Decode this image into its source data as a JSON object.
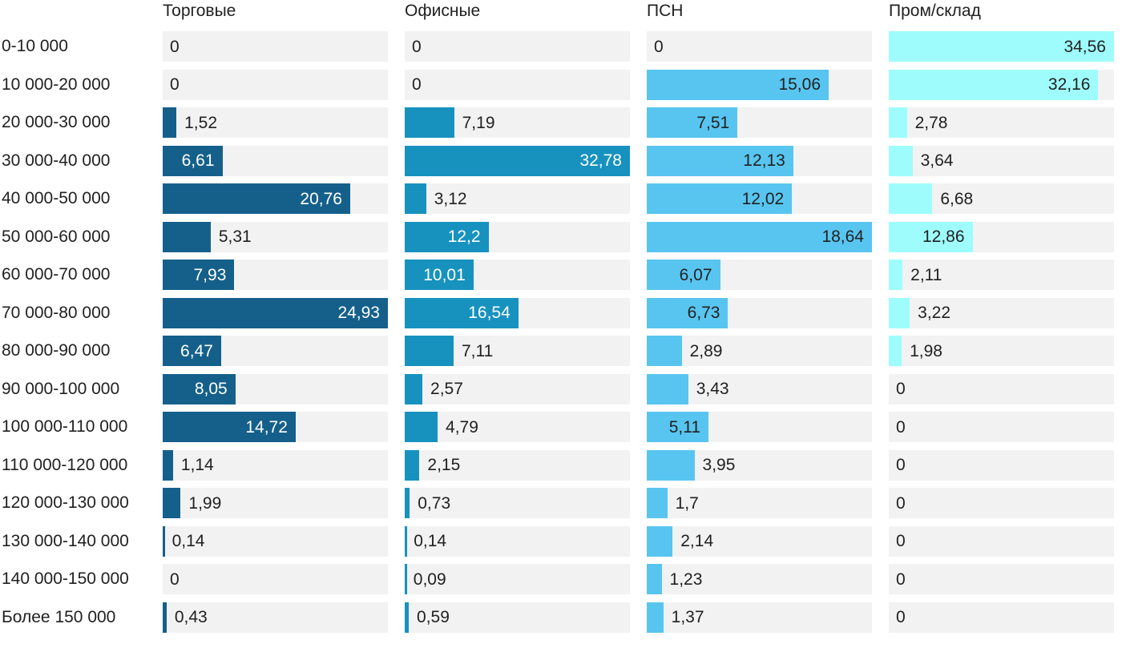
{
  "chart_data": {
    "type": "bar",
    "orientation": "horizontal",
    "scaling": "per-column-max",
    "grid": false,
    "track_color": "#f2f2f2",
    "text_color": "#212121",
    "background_color": "#ffffff",
    "categories": [
      "0-10 000",
      "10 000-20 000",
      "20 000-30 000",
      "30 000-40 000",
      "40 000-50 000",
      "50 000-60 000",
      "60 000-70 000",
      "70 000-80 000",
      "80 000-90 000",
      "90 000-100 000",
      "100 000-110 000",
      "110 000-120 000",
      "120 000-130 000",
      "130 000-140 000",
      "140 000-150 000",
      "Более 150 000"
    ],
    "series": [
      {
        "name": "Торговые",
        "color": "#15608b",
        "value_color_inside": "#ffffff",
        "values": [
          0,
          0,
          1.52,
          6.61,
          20.76,
          5.31,
          7.93,
          24.93,
          6.47,
          8.05,
          14.72,
          1.14,
          1.99,
          0.14,
          0,
          0.43
        ],
        "labels": [
          "0",
          "0",
          "1,52",
          "6,61",
          "20,76",
          "5,31",
          "7,93",
          "24,93",
          "6,47",
          "8,05",
          "14,72",
          "1,14",
          "1,99",
          "0,14",
          "0",
          "0,43"
        ]
      },
      {
        "name": "Офисные",
        "color": "#1792bf",
        "value_color_inside": "#ffffff",
        "values": [
          0,
          0,
          7.19,
          32.78,
          3.12,
          12.2,
          10.01,
          16.54,
          7.11,
          2.57,
          4.79,
          2.15,
          0.73,
          0.14,
          0.09,
          0.59
        ],
        "labels": [
          "0",
          "0",
          "7,19",
          "32,78",
          "3,12",
          "12,2",
          "10,01",
          "16,54",
          "7,11",
          "2,57",
          "4,79",
          "2,15",
          "0,73",
          "0,14",
          "0,09",
          "0,59"
        ]
      },
      {
        "name": "ПСН",
        "color": "#58c5f0",
        "value_color_inside": "#212121",
        "values": [
          0,
          15.06,
          7.51,
          12.13,
          12.02,
          18.64,
          6.07,
          6.73,
          2.89,
          3.43,
          5.11,
          3.95,
          1.7,
          2.14,
          1.23,
          1.37
        ],
        "labels": [
          "0",
          "15,06",
          "7,51",
          "12,13",
          "12,02",
          "18,64",
          "6,07",
          "6,73",
          "2,89",
          "3,43",
          "5,11",
          "3,95",
          "1,7",
          "2,14",
          "1,23",
          "1,37"
        ]
      },
      {
        "name": "Пром/склад",
        "color": "#9efdfc",
        "value_color_inside": "#212121",
        "values": [
          34.56,
          32.16,
          2.78,
          3.64,
          6.68,
          12.86,
          2.11,
          3.22,
          1.98,
          0,
          0,
          0,
          0,
          0,
          0,
          0
        ],
        "labels": [
          "34,56",
          "32,16",
          "2,78",
          "3,64",
          "6,68",
          "12,86",
          "2,11",
          "3,22",
          "1,98",
          "0",
          "0",
          "0",
          "0",
          "0",
          "0",
          "0"
        ]
      }
    ]
  }
}
